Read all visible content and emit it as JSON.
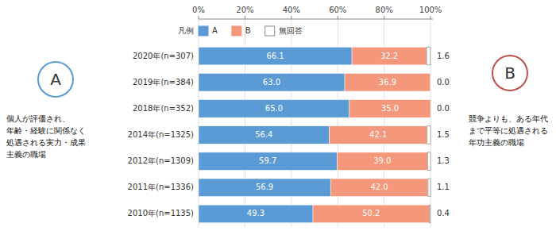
{
  "chart_data": {
    "type": "bar",
    "orientation": "horizontal",
    "stacked": true,
    "data_labels": true,
    "grid": true,
    "legend": "top",
    "legend_title": "凡例",
    "categories": [
      "2020年(n=307)",
      "2019年(n=384)",
      "2018年(n=352)",
      "2014年(n=1325)",
      "2012年(n=1309)",
      "2011年(n=1336)",
      "2010年(n=1135)"
    ],
    "series": [
      {
        "name": "A",
        "color": "#5b9bd5",
        "values": [
          66.1,
          63.0,
          65.0,
          56.4,
          59.7,
          56.9,
          49.3
        ],
        "value_labels": [
          "66.1",
          "63.0",
          "65.0",
          "56.4",
          "59.7",
          "56.9",
          "49.3"
        ]
      },
      {
        "name": "B",
        "color": "#f4977a",
        "values": [
          32.2,
          36.9,
          35.0,
          42.1,
          39.0,
          42.0,
          50.2
        ],
        "value_labels": [
          "32.2",
          "36.9",
          "35.0",
          "42.1",
          "39.0",
          "42.0",
          "50.2"
        ]
      },
      {
        "name": "無回答",
        "color": "#ffffff",
        "values": [
          1.6,
          0.0,
          0.0,
          1.5,
          1.3,
          1.1,
          0.4
        ],
        "value_labels": [
          "1.6",
          "0.0",
          "0.0",
          "1.5",
          "1.3",
          "1.1",
          "0.4"
        ]
      }
    ],
    "xlim": [
      0,
      101
    ],
    "xticks": [
      {
        "value": 0,
        "label": "0%"
      },
      {
        "value": 20,
        "label": "20%"
      },
      {
        "value": 40,
        "label": "40%"
      },
      {
        "value": 60,
        "label": "60%"
      },
      {
        "value": 80,
        "label": "80%"
      },
      {
        "value": 100,
        "label": "100%"
      }
    ],
    "annotations": [
      {
        "label": "A",
        "color": "#5b9bd5",
        "text": [
          "個人が評価され、",
          "年齢・経験に関係なく",
          "処遇される実力・成果",
          "主義の職場"
        ]
      },
      {
        "label": "B",
        "color": "#c0504d",
        "text": [
          "競争よりも、ある年代",
          "まで平等に処遇される",
          "年功主義の職場"
        ]
      }
    ]
  }
}
